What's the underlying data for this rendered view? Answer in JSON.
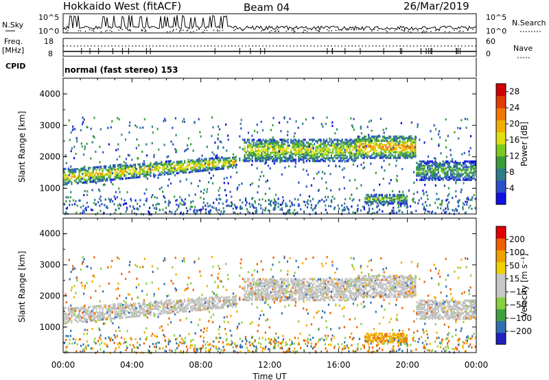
{
  "header": {
    "title": "Hokkaido West (fitACF)",
    "beam": "Beam 04",
    "date": "26/Mar/2019"
  },
  "top_panel": {
    "nsky_label": "N.Sky",
    "nsky_top": "10^5",
    "nsky_bottom": "10^0",
    "nsearch_top": "10^5",
    "nsearch_bottom": "10^0",
    "nsearch_label": "N.Search",
    "freq_label": "Freq.",
    "freq_unit": "[MHz]",
    "freq_top": "18",
    "freq_bottom": "8",
    "nave_top": "60",
    "nave_bottom": "0",
    "nave_label": "Nave",
    "cpid_label": "CPID",
    "cpid_text": "normal (fast stereo) 153"
  },
  "chart_data": [
    {
      "type": "heatmap",
      "ylabel": "Slant Range [km]",
      "yticks": [
        "1000",
        "2000",
        "3000",
        "4000"
      ],
      "ylim": [
        180,
        4500
      ],
      "colorbar": {
        "label": "Power [dB]",
        "ticks": [
          "4",
          "8",
          "12",
          "16",
          "20",
          "24",
          "28"
        ],
        "range": [
          0,
          30
        ],
        "colors": [
          "#1010e0",
          "#2a4fc8",
          "#2f7d8a",
          "#3a9c3a",
          "#7cc820",
          "#e0e010",
          "#f0b000",
          "#f07800",
          "#e03c00",
          "#d00000"
        ]
      },
      "bands": [
        {
          "t0": 0.0,
          "t1": 10.0,
          "r0": 1150,
          "r1": 1650,
          "r_end0": 1700,
          "r_end1": 2050,
          "level": 16
        },
        {
          "t0": 10.5,
          "t1": 17.0,
          "r0": 1900,
          "r1": 2600,
          "level": 14
        },
        {
          "t0": 17.0,
          "t1": 20.5,
          "r0": 2000,
          "r1": 2700,
          "level": 18
        },
        {
          "t0": 20.5,
          "t1": 24.0,
          "r0": 1300,
          "r1": 1900,
          "level": 10
        },
        {
          "t0": 17.5,
          "t1": 20.0,
          "r0": 550,
          "r1": 850,
          "level": 12
        }
      ]
    },
    {
      "type": "heatmap",
      "ylabel": "Slant Range [km]",
      "yticks": [
        "1000",
        "2000",
        "3000",
        "4000"
      ],
      "ylim": [
        180,
        4500
      ],
      "colorbar": {
        "label": "Velocity [m s⁻¹]",
        "ticks": [
          "200",
          "100",
          "50",
          "15",
          "−15",
          "−50",
          "−100",
          "−200"
        ],
        "range": [
          -250,
          250
        ],
        "colors": [
          "#e00000",
          "#f06000",
          "#f0a000",
          "#f0d000",
          "#c8c8c8",
          "#c8c8c8",
          "#88d040",
          "#40a040",
          "#3070b0",
          "#2020c0"
        ]
      },
      "xlabel": "Time UT",
      "xticks": [
        "00:00",
        "04:00",
        "08:00",
        "12:00",
        "16:00",
        "20:00",
        "00:00"
      ],
      "xlim": [
        0,
        24
      ]
    }
  ]
}
